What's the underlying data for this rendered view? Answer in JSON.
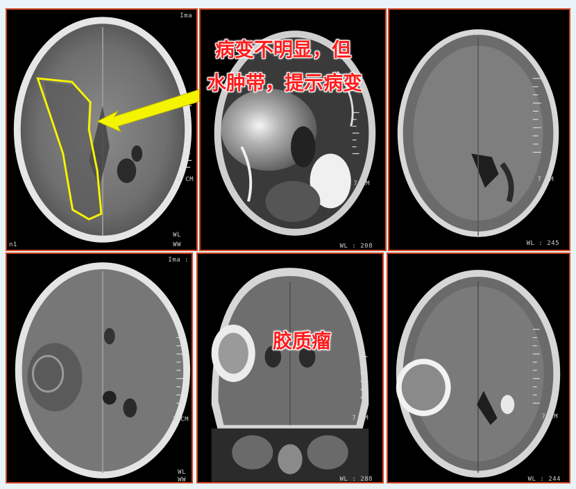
{
  "callouts": {
    "top_line1": "病变不明显，但",
    "top_line2": "水肿带，提示病变",
    "bottom": "胶质瘤"
  },
  "scan_labels": {
    "p1_ima": "Ima",
    "p1_scale": "7 CM",
    "p1_wl": "WL",
    "p1_ww": "WW",
    "p1_left": "n1",
    "p2_scale": "7 CM",
    "p2_wl": "WL : 208",
    "p3_scale": "7 CM",
    "p3_wl": "WL : 245",
    "p4_ima": "Ima :",
    "p4_scale": "7 CM",
    "p4_wl": "WL",
    "p4_ww": "WW",
    "p5_scale": "7 CM",
    "p5_wl": "WL : 288",
    "p6_scale": "7 CM",
    "p6_wl": "WL : 244"
  },
  "colors": {
    "panel_border": "#d2451e",
    "highlight_yellow": "#f4f400",
    "callout_red": "#ff1d1d"
  }
}
